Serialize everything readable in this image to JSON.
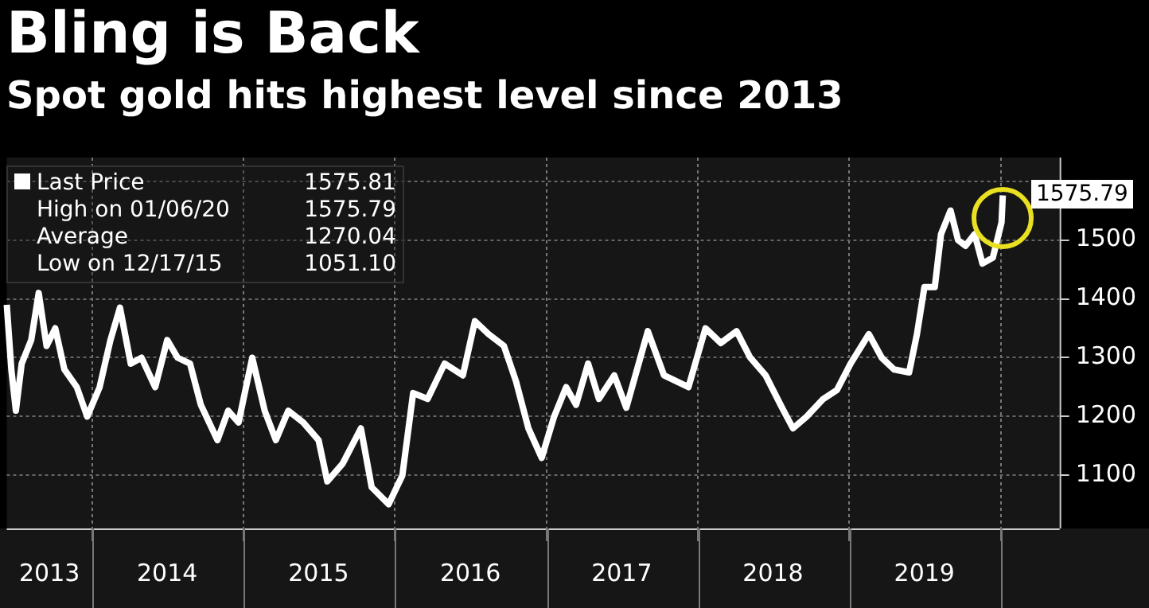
{
  "chart_data": {
    "type": "line",
    "title": "Bling is Back",
    "subtitle": "Spot gold hits highest level since 2013",
    "series": [
      {
        "name": "Last Price",
        "color": "#ffffff",
        "x": [
          "2013-06-09",
          "2013-06-20",
          "2013-07-01",
          "2013-07-15",
          "2013-08-07",
          "2013-08-25",
          "2013-09-13",
          "2013-10-04",
          "2013-10-26",
          "2013-11-25",
          "2013-12-20",
          "2014-01-19",
          "2014-02-14",
          "2014-03-09",
          "2014-04-04",
          "2014-04-30",
          "2014-06-02",
          "2014-07-01",
          "2014-07-26",
          "2014-08-25",
          "2014-09-20",
          "2014-10-30",
          "2014-11-25",
          "2014-12-20",
          "2015-01-22",
          "2015-02-21",
          "2015-03-20",
          "2015-04-19",
          "2015-05-25",
          "2015-07-01",
          "2015-07-22",
          "2015-08-28",
          "2015-10-11",
          "2015-11-06",
          "2015-12-17",
          "2016-01-19",
          "2016-02-14",
          "2016-03-20",
          "2016-04-30",
          "2016-06-13",
          "2016-07-12",
          "2016-08-14",
          "2016-09-20",
          "2016-10-19",
          "2016-11-18",
          "2016-12-20",
          "2017-01-19",
          "2017-02-17",
          "2017-03-13",
          "2017-04-11",
          "2017-05-07",
          "2017-06-13",
          "2017-07-12",
          "2017-09-02",
          "2017-10-11",
          "2017-12-09",
          "2018-01-19",
          "2018-02-25",
          "2018-04-04",
          "2018-05-07",
          "2018-06-13",
          "2018-07-19",
          "2018-08-18",
          "2018-09-20",
          "2018-10-30",
          "2018-12-02",
          "2019-01-04",
          "2019-02-17",
          "2019-03-20",
          "2019-04-19",
          "2019-05-25",
          "2019-06-13",
          "2019-07-01",
          "2019-07-26",
          "2019-08-10",
          "2019-09-02",
          "2019-09-20",
          "2019-10-08",
          "2019-10-30",
          "2019-11-18",
          "2019-12-13",
          "2020-01-03",
          "2020-01-06"
        ],
        "values": [
          1390,
          1280,
          1210,
          1290,
          1330,
          1410,
          1320,
          1350,
          1280,
          1250,
          1200,
          1250,
          1330,
          1385,
          1290,
          1300,
          1250,
          1330,
          1300,
          1290,
          1220,
          1160,
          1210,
          1190,
          1300,
          1210,
          1160,
          1210,
          1190,
          1160,
          1090,
          1120,
          1180,
          1080,
          1051.1,
          1100,
          1240,
          1230,
          1290,
          1270,
          1362,
          1340,
          1320,
          1260,
          1180,
          1130,
          1200,
          1250,
          1220,
          1290,
          1230,
          1270,
          1215,
          1345,
          1270,
          1250,
          1350,
          1325,
          1345,
          1300,
          1270,
          1220,
          1180,
          1200,
          1230,
          1245,
          1290,
          1340,
          1300,
          1280,
          1275,
          1340,
          1420,
          1420,
          1510,
          1550,
          1500,
          1490,
          1510,
          1460,
          1470,
          1530,
          1575.79
        ]
      }
    ],
    "xlim": [
      "2013-06-09",
      "2020-05-22"
    ],
    "xticks": [
      {
        "value": "2013-09-20",
        "label": "2013"
      },
      {
        "value": "2014-01-01",
        "label": null
      },
      {
        "value": "2014-07-01",
        "label": "2014"
      },
      {
        "value": "2015-01-01",
        "label": null
      },
      {
        "value": "2015-07-01",
        "label": "2015"
      },
      {
        "value": "2016-01-01",
        "label": null
      },
      {
        "value": "2016-07-01",
        "label": "2016"
      },
      {
        "value": "2017-01-01",
        "label": null
      },
      {
        "value": "2017-07-01",
        "label": "2017"
      },
      {
        "value": "2018-01-01",
        "label": null
      },
      {
        "value": "2018-07-01",
        "label": "2018"
      },
      {
        "value": "2019-01-01",
        "label": null
      },
      {
        "value": "2019-07-01",
        "label": "2019"
      },
      {
        "value": "2020-01-01",
        "label": null
      }
    ],
    "ylim": [
      1010,
      1640
    ],
    "yticks": [
      1100,
      1200,
      1300,
      1400,
      1500,
      {
        "value": 1600,
        "label": null
      }
    ],
    "grid": true,
    "legend": "top left",
    "annotations": [
      "1575.81",
      "High on 01/06/20 1575.79",
      "Average 1270.04",
      "Low on 12/17/15 1051.10",
      {
        "text": "1575.79",
        "x": "2020-01-06",
        "y": 1575.79
      }
    ]
  }
}
